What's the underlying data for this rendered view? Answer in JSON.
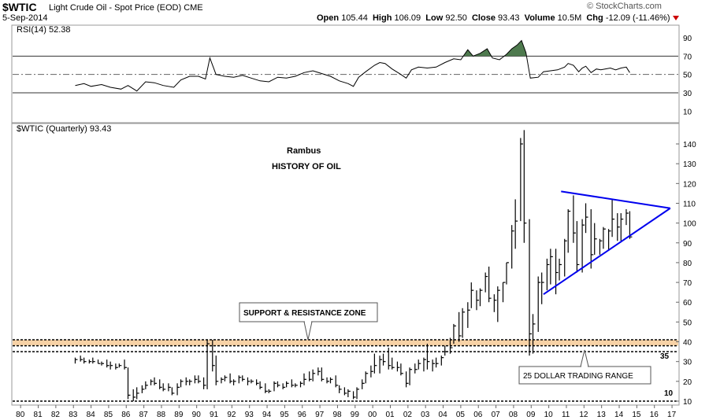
{
  "header": {
    "ticker": "$WTIC",
    "name": "Light Crude Oil - Spot Price (EOD)",
    "exchange": "CME",
    "date": "5-Sep-2014",
    "logo": "© StockCharts.com",
    "open_label": "Open",
    "open": "105.44",
    "high_label": "High",
    "high": "106.09",
    "low_label": "Low",
    "low": "92.50",
    "close_label": "Close",
    "close": "93.43",
    "volume_label": "Volume",
    "volume": "10.5M",
    "chg_label": "Chg",
    "chg": "-12.09 (-11.46%)",
    "chg_icon": "down-triangle-icon",
    "down_color": "#cc0000"
  },
  "rsi_panel": {
    "label": "RSI(14) 52.38",
    "ticks": [
      90,
      70,
      50,
      30,
      10
    ],
    "levels": [
      70,
      30
    ],
    "midline": 50,
    "fill_color": "#4e7a4e"
  },
  "main_panel": {
    "label": "$WTIC (Quarterly) 93.43",
    "annotations": {
      "rambus": "Rambus",
      "history": "HISTORY OF OIL",
      "support_zone": "SUPPORT & RESISTANCE ZONE",
      "trading_range": "25 DOLLAR TRADING RANGE",
      "level_35": "35",
      "level_10": "10"
    },
    "zone_color": "#f7d2a6",
    "triangle_color": "#0000ee"
  },
  "chart_data": {
    "type": "ohlc",
    "title": "$WTIC (Quarterly) 93.43",
    "x_ticks": [
      "80",
      "81",
      "82",
      "83",
      "84",
      "85",
      "86",
      "87",
      "88",
      "89",
      "90",
      "91",
      "92",
      "93",
      "94",
      "95",
      "96",
      "97",
      "98",
      "99",
      "00",
      "01",
      "02",
      "03",
      "04",
      "05",
      "06",
      "07",
      "08",
      "09",
      "10",
      "11",
      "12",
      "13",
      "14",
      "15",
      "16",
      "17"
    ],
    "y_ticks": [
      10,
      20,
      30,
      40,
      50,
      60,
      70,
      80,
      90,
      100,
      110,
      120,
      130,
      140
    ],
    "ylim": [
      8,
      147
    ],
    "xlim": [
      1979.5,
      2017.4
    ],
    "horizontal_lines": [
      10,
      35,
      38,
      41
    ],
    "support_zone": [
      38,
      41
    ],
    "triangle": [
      {
        "from": [
          2010.7,
          116
        ],
        "to": [
          2016.9,
          107.5
        ]
      },
      {
        "from": [
          2009.7,
          64
        ],
        "to": [
          2016.9,
          107.5
        ]
      }
    ],
    "series": [
      {
        "values": [
          [
            1983.1,
            32,
            29,
            31
          ],
          [
            1983.4,
            33,
            30,
            31
          ],
          [
            1983.6,
            32,
            29,
            30
          ],
          [
            1983.9,
            31,
            29,
            30
          ],
          [
            1984.1,
            32,
            29,
            30
          ],
          [
            1984.4,
            31,
            29,
            29
          ],
          [
            1984.6,
            30,
            28,
            29
          ],
          [
            1984.9,
            31,
            27,
            28
          ],
          [
            1985.1,
            30,
            26,
            28
          ],
          [
            1985.4,
            29,
            26,
            27
          ],
          [
            1985.6,
            29,
            27,
            28
          ],
          [
            1985.9,
            31,
            26,
            27
          ],
          [
            1986.1,
            27,
            11,
            13
          ],
          [
            1986.4,
            16,
            10,
            12
          ],
          [
            1986.6,
            17,
            11,
            14
          ],
          [
            1986.9,
            18,
            14,
            16
          ],
          [
            1987.1,
            20,
            16,
            18
          ],
          [
            1987.4,
            21,
            18,
            20
          ],
          [
            1987.6,
            22,
            18,
            19
          ],
          [
            1987.9,
            21,
            16,
            17
          ],
          [
            1988.1,
            19,
            15,
            16
          ],
          [
            1988.4,
            19,
            15,
            17
          ],
          [
            1988.6,
            17,
            13,
            14
          ],
          [
            1988.9,
            19,
            13,
            17
          ],
          [
            1989.1,
            21,
            17,
            20
          ],
          [
            1989.4,
            22,
            18,
            20
          ],
          [
            1989.6,
            21,
            18,
            20
          ],
          [
            1989.9,
            23,
            19,
            21
          ],
          [
            1990.1,
            23,
            19,
            20
          ],
          [
            1990.4,
            22,
            16,
            18
          ],
          [
            1990.6,
            41,
            16,
            39
          ],
          [
            1990.9,
            41,
            25,
            28
          ],
          [
            1991.1,
            33,
            18,
            20
          ],
          [
            1991.4,
            22,
            19,
            21
          ],
          [
            1991.6,
            23,
            20,
            22
          ],
          [
            1991.9,
            24,
            19,
            20
          ],
          [
            1992.1,
            21,
            18,
            20
          ],
          [
            1992.4,
            23,
            19,
            22
          ],
          [
            1992.6,
            23,
            20,
            21
          ],
          [
            1992.9,
            22,
            18,
            20
          ],
          [
            1993.1,
            21,
            19,
            20
          ],
          [
            1993.4,
            21,
            18,
            19
          ],
          [
            1993.6,
            20,
            16,
            17
          ],
          [
            1993.9,
            19,
            14,
            15
          ],
          [
            1994.1,
            16,
            14,
            15
          ],
          [
            1994.4,
            20,
            15,
            19
          ],
          [
            1994.6,
            20,
            17,
            18
          ],
          [
            1994.9,
            19,
            16,
            17
          ],
          [
            1995.1,
            20,
            17,
            19
          ],
          [
            1995.4,
            21,
            17,
            18
          ],
          [
            1995.6,
            19,
            17,
            18
          ],
          [
            1995.9,
            20,
            17,
            19
          ],
          [
            1996.1,
            24,
            18,
            21
          ],
          [
            1996.4,
            25,
            20,
            21
          ],
          [
            1996.6,
            26,
            20,
            24
          ],
          [
            1996.9,
            27,
            23,
            25
          ],
          [
            1997.1,
            27,
            20,
            21
          ],
          [
            1997.4,
            22,
            19,
            20
          ],
          [
            1997.6,
            22,
            19,
            21
          ],
          [
            1997.9,
            23,
            17,
            18
          ],
          [
            1998.1,
            18,
            14,
            16
          ],
          [
            1998.4,
            17,
            13,
            14
          ],
          [
            1998.6,
            16,
            12,
            15
          ],
          [
            1998.9,
            15,
            11,
            12
          ],
          [
            1999.1,
            17,
            11,
            16
          ],
          [
            1999.4,
            21,
            16,
            19
          ],
          [
            1999.6,
            25,
            19,
            24
          ],
          [
            1999.9,
            28,
            22,
            25
          ],
          [
            2000.1,
            34,
            24,
            28
          ],
          [
            2000.4,
            33,
            24,
            31
          ],
          [
            2000.6,
            34,
            28,
            30
          ],
          [
            2000.9,
            37,
            26,
            28
          ],
          [
            2001.1,
            32,
            26,
            27
          ],
          [
            2001.4,
            30,
            25,
            27
          ],
          [
            2001.6,
            29,
            23,
            24
          ],
          [
            2001.9,
            25,
            17,
            19
          ],
          [
            2002.1,
            27,
            18,
            26
          ],
          [
            2002.4,
            29,
            24,
            26
          ],
          [
            2002.6,
            31,
            26,
            29
          ],
          [
            2002.9,
            32,
            25,
            31
          ],
          [
            2003.1,
            39,
            26,
            30
          ],
          [
            2003.4,
            31,
            25,
            29
          ],
          [
            2003.6,
            32,
            27,
            29
          ],
          [
            2003.9,
            33,
            28,
            32
          ],
          [
            2004.1,
            38,
            33,
            35
          ],
          [
            2004.4,
            42,
            34,
            37
          ],
          [
            2004.6,
            49,
            39,
            48
          ],
          [
            2004.9,
            55,
            40,
            43
          ],
          [
            2005.1,
            57,
            42,
            55
          ],
          [
            2005.4,
            60,
            47,
            56
          ],
          [
            2005.6,
            70,
            57,
            66
          ],
          [
            2005.9,
            66,
            56,
            61
          ],
          [
            2006.1,
            67,
            58,
            66
          ],
          [
            2006.4,
            75,
            65,
            73
          ],
          [
            2006.6,
            78,
            60,
            62
          ],
          [
            2006.9,
            64,
            55,
            61
          ],
          [
            2007.1,
            68,
            50,
            66
          ],
          [
            2007.4,
            70,
            60,
            70
          ],
          [
            2007.6,
            80,
            69,
            80
          ],
          [
            2007.9,
            99,
            77,
            96
          ],
          [
            2008.1,
            112,
            87,
            101
          ],
          [
            2008.4,
            143,
            101,
            140
          ],
          [
            2008.6,
            147,
            90,
            100
          ],
          [
            2008.9,
            102,
            33,
            44
          ],
          [
            2009.1,
            54,
            34,
            49
          ],
          [
            2009.4,
            73,
            45,
            70
          ],
          [
            2009.6,
            75,
            59,
            70
          ],
          [
            2009.9,
            82,
            66,
            79
          ],
          [
            2010.1,
            87,
            69,
            83
          ],
          [
            2010.4,
            87,
            64,
            75
          ],
          [
            2010.6,
            82,
            71,
            79
          ],
          [
            2010.9,
            92,
            73,
            91
          ],
          [
            2011.1,
            107,
            85,
            106
          ],
          [
            2011.4,
            114,
            90,
            95
          ],
          [
            2011.6,
            101,
            75,
            79
          ],
          [
            2011.9,
            102,
            75,
            99
          ],
          [
            2012.1,
            110,
            95,
            103
          ],
          [
            2012.4,
            107,
            77,
            84
          ],
          [
            2012.6,
            100,
            84,
            92
          ],
          [
            2012.9,
            92,
            84,
            91
          ],
          [
            2013.1,
            98,
            87,
            97
          ],
          [
            2013.4,
            97,
            86,
            96
          ],
          [
            2013.6,
            112,
            93,
            102
          ],
          [
            2013.9,
            105,
            91,
            98
          ],
          [
            2014.1,
            105,
            91,
            102
          ],
          [
            2014.4,
            107,
            99,
            105
          ],
          [
            2014.6,
            106,
            92,
            93
          ]
        ]
      }
    ],
    "rsi_values": [
      [
        1983.1,
        38
      ],
      [
        1983.6,
        40
      ],
      [
        1984.0,
        37
      ],
      [
        1984.6,
        39
      ],
      [
        1985.1,
        36
      ],
      [
        1985.7,
        34
      ],
      [
        1986.1,
        38
      ],
      [
        1986.6,
        32
      ],
      [
        1987.1,
        42
      ],
      [
        1987.6,
        41
      ],
      [
        1988.1,
        38
      ],
      [
        1988.7,
        36
      ],
      [
        1989.1,
        44
      ],
      [
        1989.6,
        48
      ],
      [
        1990.1,
        48
      ],
      [
        1990.5,
        45
      ],
      [
        1990.75,
        68
      ],
      [
        1991.1,
        50
      ],
      [
        1991.6,
        48
      ],
      [
        1992.1,
        47
      ],
      [
        1992.6,
        49
      ],
      [
        1993.1,
        46
      ],
      [
        1993.6,
        43
      ],
      [
        1994.1,
        42
      ],
      [
        1994.6,
        47
      ],
      [
        1995.1,
        46
      ],
      [
        1995.6,
        48
      ],
      [
        1996.1,
        52
      ],
      [
        1996.6,
        54
      ],
      [
        1997.1,
        51
      ],
      [
        1997.6,
        48
      ],
      [
        1998.1,
        43
      ],
      [
        1998.6,
        40
      ],
      [
        1998.9,
        37
      ],
      [
        1999.2,
        47
      ],
      [
        1999.6,
        53
      ],
      [
        2000.1,
        60
      ],
      [
        2000.4,
        63
      ],
      [
        2000.7,
        62
      ],
      [
        2001.1,
        56
      ],
      [
        2001.6,
        50
      ],
      [
        2001.9,
        46
      ],
      [
        2002.2,
        55
      ],
      [
        2002.6,
        58
      ],
      [
        2003.1,
        57
      ],
      [
        2003.6,
        58
      ],
      [
        2004.1,
        63
      ],
      [
        2004.6,
        67
      ],
      [
        2005.0,
        66
      ],
      [
        2005.4,
        77
      ],
      [
        2005.7,
        70
      ],
      [
        2006.1,
        73
      ],
      [
        2006.5,
        78
      ],
      [
        2006.8,
        68
      ],
      [
        2007.2,
        66
      ],
      [
        2007.6,
        72
      ],
      [
        2007.9,
        78
      ],
      [
        2008.2,
        82
      ],
      [
        2008.45,
        87
      ],
      [
        2008.7,
        74
      ],
      [
        2008.95,
        46
      ],
      [
        2009.4,
        47
      ],
      [
        2009.7,
        53
      ],
      [
        2010.1,
        54
      ],
      [
        2010.5,
        55
      ],
      [
        2010.9,
        58
      ],
      [
        2011.1,
        62
      ],
      [
        2011.4,
        60
      ],
      [
        2011.7,
        53
      ],
      [
        2011.9,
        57
      ],
      [
        2012.1,
        59
      ],
      [
        2012.4,
        52
      ],
      [
        2012.7,
        56
      ],
      [
        2012.95,
        55
      ],
      [
        2013.2,
        56
      ],
      [
        2013.5,
        57
      ],
      [
        2013.8,
        55
      ],
      [
        2014.1,
        57
      ],
      [
        2014.4,
        58
      ],
      [
        2014.6,
        52
      ]
    ]
  }
}
